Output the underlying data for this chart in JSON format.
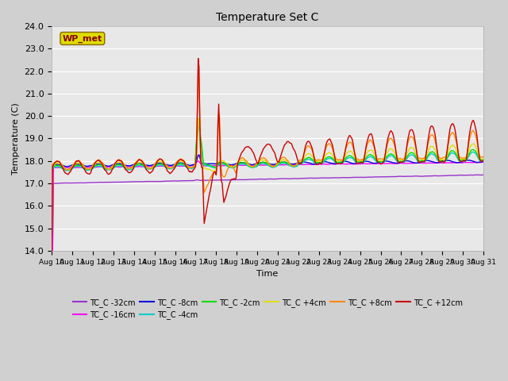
{
  "title": "Temperature Set C",
  "xlabel": "Time",
  "ylabel": "Temperature (C)",
  "ylim": [
    14.0,
    24.0
  ],
  "yticks": [
    14.0,
    15.0,
    16.0,
    17.0,
    18.0,
    19.0,
    20.0,
    21.0,
    22.0,
    23.0,
    24.0
  ],
  "x_days": [
    "Aug 10",
    "Aug 11",
    "Aug 12",
    "Aug 13",
    "Aug 14",
    "Aug 15",
    "Aug 16",
    "Aug 17",
    "Aug 18",
    "Aug 19",
    "Aug 20",
    "Aug 21",
    "Aug 22",
    "Aug 23",
    "Aug 24",
    "Aug 25",
    "Aug 26",
    "Aug 27",
    "Aug 28",
    "Aug 29",
    "Aug 30",
    "Aug 31"
  ],
  "plot_bg_color": "#e8e8e8",
  "fig_bg_color": "#d0d0d0",
  "grid_color": "#ffffff",
  "series": [
    {
      "label": "TC_C -32cm",
      "color": "#9933cc"
    },
    {
      "label": "TC_C -16cm",
      "color": "#ff00ff"
    },
    {
      "label": "TC_C -8cm",
      "color": "#0000dd"
    },
    {
      "label": "TC_C -4cm",
      "color": "#00cccc"
    },
    {
      "label": "TC_C -2cm",
      "color": "#00dd00"
    },
    {
      "label": "TC_C +4cm",
      "color": "#dddd00"
    },
    {
      "label": "TC_C +8cm",
      "color": "#ff8800"
    },
    {
      "label": "TC_C +12cm",
      "color": "#cc0000"
    }
  ],
  "wp_met_box_color": "#dddd00",
  "wp_met_text_color": "#880000"
}
